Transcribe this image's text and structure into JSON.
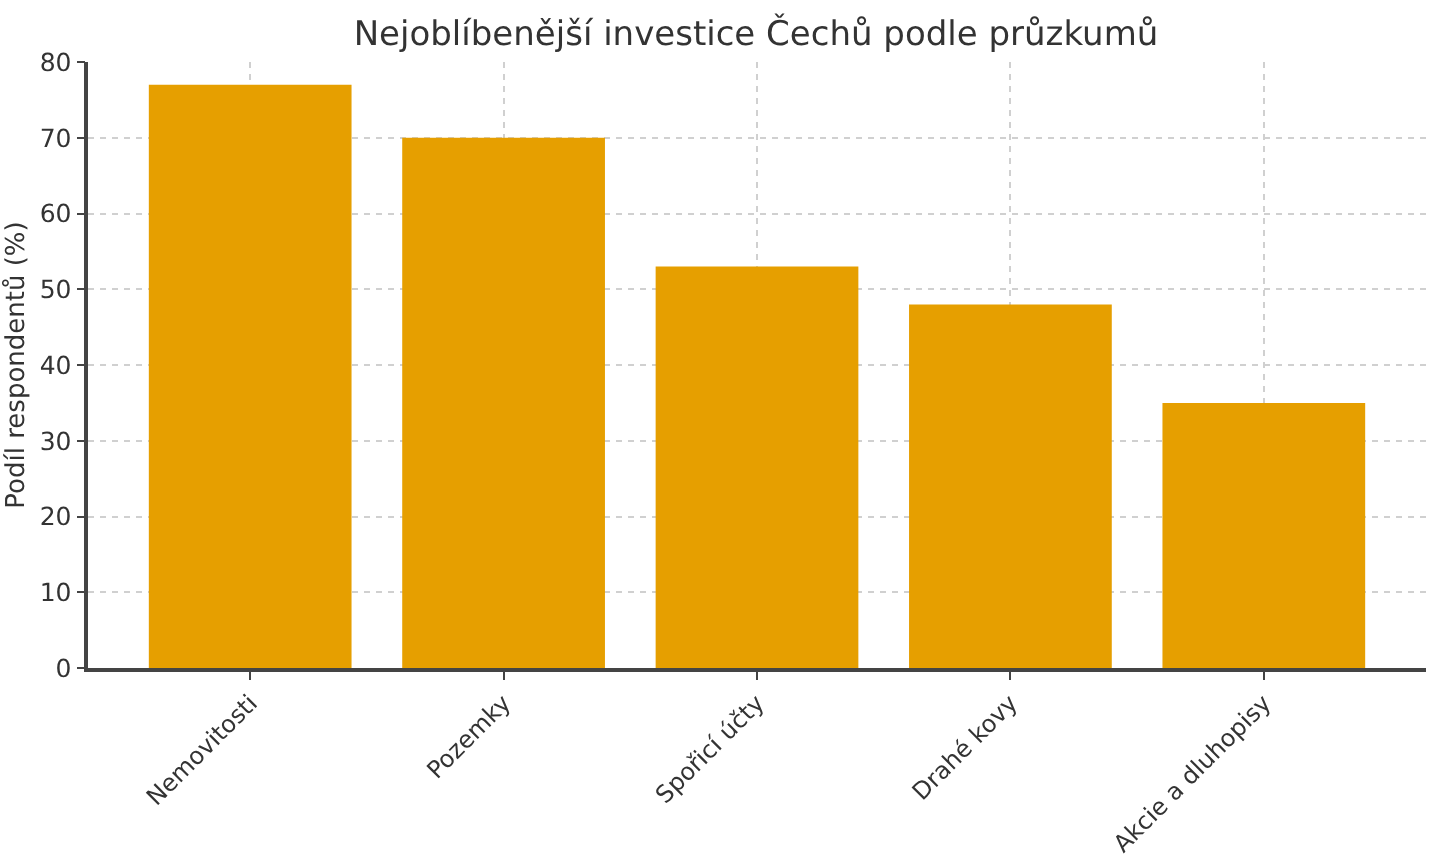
{
  "chart_data": {
    "type": "bar",
    "title": "Nejoblíbenější investice Čechů podle průzkumů",
    "ylabel": "Podíl respondentů (%)",
    "categories": [
      "Nemovitosti",
      "Pozemky",
      "Spořicí účty",
      "Drahé kovy",
      "Akcie a dluhopisy"
    ],
    "values": [
      77,
      70,
      53,
      48,
      35
    ],
    "color": "#e69f00",
    "ylim": [
      0,
      80
    ],
    "yticks": [
      0,
      10,
      20,
      30,
      40,
      50,
      60,
      70,
      80
    ],
    "grid": true
  }
}
